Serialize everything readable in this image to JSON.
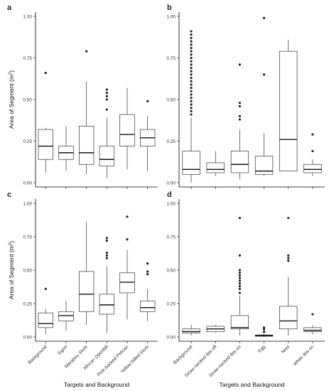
{
  "figure": {
    "xlabel_bottom_left": "Targets and Background",
    "xlabel_bottom_right": "Targets and Background"
  },
  "chart_data": [
    {
      "type": "box",
      "panel": "a",
      "ylabel": "Area of Segment (m²)",
      "ylabel_main": "Area of Segment",
      "ylabel_unit": "(m",
      "ylabel_exp": "2",
      "ylabel_close": ")",
      "ylim": [
        0,
        1.0
      ],
      "yticks": [
        "0.00",
        "0.25",
        "0.50",
        "0.75",
        "1.00"
      ],
      "ytick_values": [
        0,
        0.25,
        0.5,
        0.75,
        1.0
      ],
      "categories": [
        "Background",
        "Egret",
        "Marabou Stork",
        "African Openbill",
        "Pink-backed Pelican",
        "Yellow-billed Stork"
      ],
      "show_xticks": false,
      "boxes": [
        {
          "min": 0.06,
          "q1": 0.14,
          "median": 0.22,
          "q3": 0.32,
          "max": 0.33,
          "outliers": [
            0.66
          ]
        },
        {
          "min": 0.07,
          "q1": 0.14,
          "median": 0.18,
          "q3": 0.22,
          "max": 0.34,
          "outliers": []
        },
        {
          "min": 0.05,
          "q1": 0.11,
          "median": 0.18,
          "q3": 0.34,
          "max": 0.61,
          "outliers": [
            0.79
          ]
        },
        {
          "min": 0.03,
          "q1": 0.1,
          "median": 0.14,
          "q3": 0.22,
          "max": 0.39,
          "outliers": [
            0.44,
            0.5,
            0.52,
            0.54,
            0.56
          ]
        },
        {
          "min": 0.08,
          "q1": 0.22,
          "median": 0.29,
          "q3": 0.41,
          "max": 0.57,
          "outliers": []
        },
        {
          "min": 0.07,
          "q1": 0.22,
          "median": 0.27,
          "q3": 0.32,
          "max": 0.4,
          "outliers": [
            0.49
          ]
        }
      ]
    },
    {
      "type": "box",
      "panel": "b",
      "ylabel": "",
      "ylim": [
        0,
        1.0
      ],
      "yticks": [
        "0.00",
        "0.25",
        "0.50",
        "0.75",
        "1.00"
      ],
      "ytick_values": [
        0,
        0.25,
        0.5,
        0.75,
        1.0
      ],
      "categories": [
        "Background",
        "Straw-necked Ibis off",
        "Straw-necked Ibis on",
        "Egg",
        "Nest",
        "White Ibis on"
      ],
      "show_xticks": false,
      "boxes": [
        {
          "min": 0.0,
          "q1": 0.05,
          "median": 0.08,
          "q3": 0.19,
          "max": 0.39,
          "outliers": [
            0.41,
            0.43,
            0.45,
            0.47,
            0.49,
            0.51,
            0.53,
            0.55,
            0.57,
            0.59,
            0.61,
            0.63,
            0.65,
            0.67,
            0.69,
            0.71,
            0.73,
            0.75,
            0.77,
            0.79,
            0.81,
            0.83,
            0.85,
            0.87,
            0.89,
            0.91
          ]
        },
        {
          "min": 0.04,
          "q1": 0.06,
          "median": 0.08,
          "q3": 0.12,
          "max": 0.19,
          "outliers": []
        },
        {
          "min": 0.02,
          "q1": 0.06,
          "median": 0.11,
          "q3": 0.19,
          "max": 0.32,
          "outliers": [
            0.38,
            0.4,
            0.46,
            0.48,
            0.71
          ]
        },
        {
          "min": 0.04,
          "q1": 0.05,
          "median": 0.07,
          "q3": 0.16,
          "max": 0.3,
          "outliers": [
            0.65,
            0.99
          ]
        },
        {
          "min": 0.07,
          "q1": 0.07,
          "median": 0.26,
          "q3": 0.79,
          "max": 0.86,
          "outliers": []
        },
        {
          "min": 0.04,
          "q1": 0.06,
          "median": 0.08,
          "q3": 0.11,
          "max": 0.14,
          "outliers": [
            0.19,
            0.29
          ]
        }
      ]
    },
    {
      "type": "box",
      "panel": "c",
      "ylabel": "Area of Segment (m²)",
      "ylabel_main": "Area of Segment",
      "ylabel_unit": "(m",
      "ylabel_exp": "2",
      "ylabel_close": ")",
      "xlabel": "Targets and Background",
      "ylim": [
        0,
        1.0
      ],
      "yticks": [
        "0.00",
        "0.25",
        "0.50",
        "0.75",
        "1.00"
      ],
      "ytick_values": [
        0,
        0.25,
        0.5,
        0.75,
        1.0
      ],
      "categories": [
        "Background",
        "Egret",
        "Marabou Stork",
        "African Openbill",
        "Pink-backed Pelican",
        "Yellow-billed Stork"
      ],
      "show_xticks": true,
      "boxes": [
        {
          "min": 0.02,
          "q1": 0.07,
          "median": 0.1,
          "q3": 0.18,
          "max": 0.21,
          "outliers": [
            0.36
          ]
        },
        {
          "min": 0.05,
          "q1": 0.12,
          "median": 0.16,
          "q3": 0.19,
          "max": 0.27,
          "outliers": []
        },
        {
          "min": 0.09,
          "q1": 0.19,
          "median": 0.32,
          "q3": 0.49,
          "max": 0.86,
          "outliers": []
        },
        {
          "min": 0.03,
          "q1": 0.17,
          "median": 0.24,
          "q3": 0.32,
          "max": 0.53,
          "outliers": [
            0.59,
            0.61,
            0.63,
            0.72,
            0.74
          ]
        },
        {
          "min": 0.13,
          "q1": 0.33,
          "median": 0.41,
          "q3": 0.48,
          "max": 0.65,
          "outliers": [
            0.73,
            0.9
          ]
        },
        {
          "min": 0.12,
          "q1": 0.19,
          "median": 0.22,
          "q3": 0.27,
          "max": 0.36,
          "outliers": [
            0.47,
            0.49,
            0.55
          ]
        }
      ]
    },
    {
      "type": "box",
      "panel": "d",
      "ylabel": "",
      "xlabel": "Targets and Background",
      "ylim": [
        0,
        1.0
      ],
      "yticks": [
        "0.00",
        "0.25",
        "0.50",
        "0.75",
        "1.00"
      ],
      "ytick_values": [
        0,
        0.25,
        0.5,
        0.75,
        1.0
      ],
      "categories": [
        "Background",
        "Straw-necked Ibis off",
        "Straw-necked Ibis on",
        "Egg",
        "Nest",
        "White Ibis on"
      ],
      "show_xticks": true,
      "boxes": [
        {
          "min": 0.01,
          "q1": 0.03,
          "median": 0.04,
          "q3": 0.06,
          "max": 0.09,
          "outliers": []
        },
        {
          "min": 0.03,
          "q1": 0.04,
          "median": 0.06,
          "q3": 0.08,
          "max": 0.09,
          "outliers": []
        },
        {
          "min": 0.01,
          "q1": 0.06,
          "median": 0.07,
          "q3": 0.16,
          "max": 0.31,
          "outliers": [
            0.33,
            0.36,
            0.38,
            0.4,
            0.42,
            0.44,
            0.46,
            0.48,
            0.5,
            0.61,
            0.89
          ]
        },
        {
          "min": 0.0,
          "q1": 0.005,
          "median": 0.01,
          "q3": 0.015,
          "max": 0.03,
          "outliers": [
            0.04,
            0.06,
            0.07
          ]
        },
        {
          "min": 0.01,
          "q1": 0.06,
          "median": 0.12,
          "q3": 0.23,
          "max": 0.45,
          "outliers": [
            0.57,
            0.59,
            0.61,
            0.89
          ]
        },
        {
          "min": 0.02,
          "q1": 0.04,
          "median": 0.05,
          "q3": 0.07,
          "max": 0.09,
          "outliers": [
            0.17
          ]
        }
      ]
    }
  ]
}
